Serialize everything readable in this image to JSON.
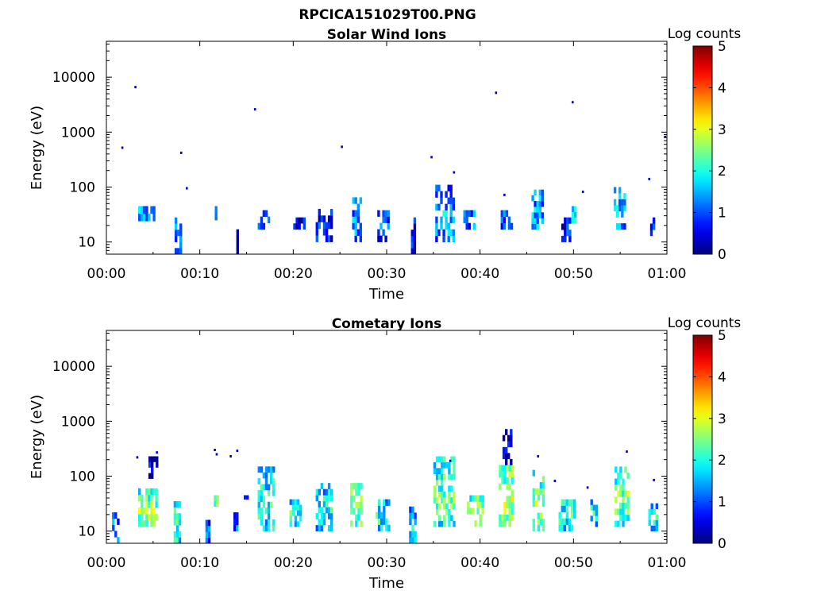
{
  "figure": {
    "title": "RPCICA151029T00.PNG"
  },
  "colors": {
    "colormap": "jet",
    "axis": "#000000",
    "background": "#ffffff"
  },
  "chart_data": [
    {
      "type": "heatmap",
      "title": "Solar Wind Ions",
      "xlabel": "Time",
      "ylabel": "Energy (eV)",
      "yscale": "log",
      "ylim": [
        6,
        45000
      ],
      "xlim_minutes": [
        0,
        60
      ],
      "x_ticks": [
        "00:00",
        "00:10",
        "00:20",
        "00:30",
        "00:40",
        "00:50",
        "01:00"
      ],
      "y_ticks": [
        "10",
        "100",
        "1000",
        "10000"
      ],
      "colorbar": {
        "label": "Log counts",
        "range": [
          0,
          5
        ],
        "ticks": [
          "0",
          "1",
          "2",
          "3",
          "4",
          "5"
        ]
      },
      "blocks": [
        {
          "t": 3.4,
          "w": 2.0,
          "e": [
            24,
            45
          ],
          "v": 1.4,
          "dens": 0.8
        },
        {
          "t": 7.3,
          "w": 0.8,
          "e": [
            6,
            28
          ],
          "v": 1.2,
          "dens": 0.7
        },
        {
          "t": 11.6,
          "w": 0.25,
          "e": [
            25,
            45
          ],
          "v": 2.0,
          "dens": 1.0
        },
        {
          "t": 13.9,
          "w": 0.2,
          "e": [
            6,
            17
          ],
          "v": 0.3,
          "dens": 1.0
        },
        {
          "t": 16.2,
          "w": 1.4,
          "e": [
            17,
            38
          ],
          "v": 0.9,
          "dens": 0.6
        },
        {
          "t": 20.0,
          "w": 1.2,
          "e": [
            17,
            28
          ],
          "v": 0.6,
          "dens": 0.9
        },
        {
          "t": 22.4,
          "w": 1.7,
          "e": [
            10,
            40
          ],
          "v": 0.9,
          "dens": 0.6
        },
        {
          "t": 26.3,
          "w": 1.0,
          "e": [
            10,
            65
          ],
          "v": 1.3,
          "dens": 0.6
        },
        {
          "t": 29.0,
          "w": 1.2,
          "e": [
            10,
            38
          ],
          "v": 1.0,
          "dens": 0.6
        },
        {
          "t": 32.6,
          "w": 0.6,
          "e": [
            6,
            28
          ],
          "v": 0.7,
          "dens": 0.8
        },
        {
          "t": 35.2,
          "w": 2.1,
          "e": [
            10,
            110
          ],
          "v": 1.5,
          "dens": 0.6
        },
        {
          "t": 38.2,
          "w": 1.2,
          "e": [
            17,
            38
          ],
          "v": 1.3,
          "dens": 0.6
        },
        {
          "t": 42.2,
          "w": 1.4,
          "e": [
            17,
            38
          ],
          "v": 1.2,
          "dens": 0.6
        },
        {
          "t": 45.5,
          "w": 1.2,
          "e": [
            17,
            90
          ],
          "v": 1.5,
          "dens": 0.6
        },
        {
          "t": 48.7,
          "w": 1.0,
          "e": [
            10,
            28
          ],
          "v": 0.8,
          "dens": 0.7
        },
        {
          "t": 49.8,
          "w": 0.4,
          "e": [
            22,
            45
          ],
          "v": 2.0,
          "dens": 0.7
        },
        {
          "t": 54.3,
          "w": 1.4,
          "e": [
            17,
            100
          ],
          "v": 1.5,
          "dens": 0.6
        },
        {
          "t": 58.2,
          "w": 0.5,
          "e": [
            10,
            28
          ],
          "v": 0.6,
          "dens": 0.8
        }
      ],
      "points": [
        {
          "t": 1.7,
          "e": 520
        },
        {
          "t": 3.1,
          "e": 6600
        },
        {
          "t": 8.0,
          "e": 420
        },
        {
          "t": 8.6,
          "e": 95
        },
        {
          "t": 15.9,
          "e": 2600
        },
        {
          "t": 25.2,
          "e": 540
        },
        {
          "t": 34.8,
          "e": 350
        },
        {
          "t": 37.2,
          "e": 185
        },
        {
          "t": 41.7,
          "e": 5200
        },
        {
          "t": 42.6,
          "e": 72
        },
        {
          "t": 49.9,
          "e": 3500
        },
        {
          "t": 51.0,
          "e": 82
        },
        {
          "t": 58.1,
          "e": 140
        },
        {
          "t": 59.8,
          "e": 820
        }
      ]
    },
    {
      "type": "heatmap",
      "title": "Cometary Ions",
      "xlabel": "Time",
      "ylabel": "Energy (eV)",
      "yscale": "log",
      "ylim": [
        6,
        45000
      ],
      "xlim_minutes": [
        0,
        60
      ],
      "x_ticks": [
        "00:00",
        "00:10",
        "00:20",
        "00:30",
        "00:40",
        "00:50",
        "01:00"
      ],
      "y_ticks": [
        "10",
        "100",
        "1000",
        "10000"
      ],
      "colorbar": {
        "label": "Log counts",
        "range": [
          0,
          5
        ],
        "ticks": [
          "0",
          "1",
          "2",
          "3",
          "4",
          "5"
        ]
      },
      "blocks": [
        {
          "t": 0.6,
          "w": 0.7,
          "e": [
            6,
            22
          ],
          "v": 1.2,
          "dens": 0.7
        },
        {
          "t": 3.4,
          "w": 2.2,
          "e": [
            12,
            60
          ],
          "v": 2.6,
          "dens": 0.75
        },
        {
          "t": 4.5,
          "w": 1.0,
          "e": [
            90,
            230
          ],
          "v": 0.5,
          "dens": 0.5
        },
        {
          "t": 7.2,
          "w": 0.8,
          "e": [
            6,
            35
          ],
          "v": 2.2,
          "dens": 0.8
        },
        {
          "t": 10.6,
          "w": 0.4,
          "e": [
            6,
            16
          ],
          "v": 1.3,
          "dens": 0.9
        },
        {
          "t": 11.5,
          "w": 0.4,
          "e": [
            28,
            45
          ],
          "v": 2.7,
          "dens": 0.9
        },
        {
          "t": 13.6,
          "w": 0.6,
          "e": [
            10,
            22
          ],
          "v": 1.2,
          "dens": 0.8
        },
        {
          "t": 14.7,
          "w": 0.4,
          "e": [
            38,
            45
          ],
          "v": 0.8,
          "dens": 0.9
        },
        {
          "t": 16.2,
          "w": 1.7,
          "e": [
            10,
            150
          ],
          "v": 2.0,
          "dens": 0.6
        },
        {
          "t": 19.6,
          "w": 1.4,
          "e": [
            12,
            38
          ],
          "v": 2.1,
          "dens": 0.7
        },
        {
          "t": 22.4,
          "w": 1.8,
          "e": [
            10,
            75
          ],
          "v": 1.9,
          "dens": 0.6
        },
        {
          "t": 26.1,
          "w": 1.4,
          "e": [
            12,
            75
          ],
          "v": 2.6,
          "dens": 0.65
        },
        {
          "t": 28.8,
          "w": 1.6,
          "e": [
            10,
            38
          ],
          "v": 2.0,
          "dens": 0.65
        },
        {
          "t": 32.4,
          "w": 0.8,
          "e": [
            6,
            28
          ],
          "v": 1.7,
          "dens": 0.7
        },
        {
          "t": 35.0,
          "w": 2.4,
          "e": [
            12,
            230
          ],
          "v": 2.4,
          "dens": 0.6
        },
        {
          "t": 38.6,
          "w": 1.8,
          "e": [
            12,
            45
          ],
          "v": 2.6,
          "dens": 0.65
        },
        {
          "t": 42.0,
          "w": 1.6,
          "e": [
            12,
            160
          ],
          "v": 2.8,
          "dens": 0.65
        },
        {
          "t": 42.4,
          "w": 1.0,
          "e": [
            160,
            720
          ],
          "v": 0.4,
          "dens": 0.4
        },
        {
          "t": 45.6,
          "w": 1.4,
          "e": [
            10,
            130
          ],
          "v": 2.6,
          "dens": 0.6
        },
        {
          "t": 48.4,
          "w": 1.8,
          "e": [
            10,
            38
          ],
          "v": 2.1,
          "dens": 0.65
        },
        {
          "t": 51.8,
          "w": 0.8,
          "e": [
            12,
            38
          ],
          "v": 1.9,
          "dens": 0.7
        },
        {
          "t": 54.4,
          "w": 1.6,
          "e": [
            12,
            150
          ],
          "v": 2.5,
          "dens": 0.6
        },
        {
          "t": 58.0,
          "w": 1.0,
          "e": [
            10,
            32
          ],
          "v": 1.9,
          "dens": 0.7
        }
      ],
      "points": [
        {
          "t": 3.3,
          "e": 220
        },
        {
          "t": 5.4,
          "e": 270
        },
        {
          "t": 11.6,
          "e": 300
        },
        {
          "t": 11.8,
          "e": 250
        },
        {
          "t": 13.3,
          "e": 230
        },
        {
          "t": 14.0,
          "e": 290
        },
        {
          "t": 36.8,
          "e": 190
        },
        {
          "t": 46.2,
          "e": 230
        },
        {
          "t": 48.0,
          "e": 82
        },
        {
          "t": 51.5,
          "e": 62
        },
        {
          "t": 55.7,
          "e": 280
        },
        {
          "t": 58.6,
          "e": 85
        }
      ]
    }
  ]
}
